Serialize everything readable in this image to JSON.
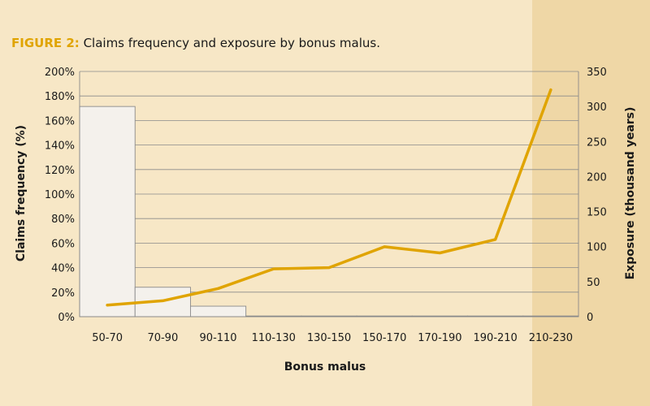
{
  "figure": {
    "label": "FIGURE 2:",
    "caption": "Claims frequency and exposure by bonus malus."
  },
  "colors": {
    "background": "#f7e7c6",
    "background_highlight": "#efd7a6",
    "line": "#e0a400",
    "bar_fill": "#f4f1ec",
    "bar_stroke": "#8a8a8a",
    "grid": "#8a8a8a"
  },
  "chart_data": {
    "type": "bar",
    "title": "Claims frequency and exposure by bonus malus.",
    "xlabel": "Bonus malus",
    "ylabel_left": "Claims frequency (%)",
    "ylabel_right": "Exposure (thousand years)",
    "categories": [
      "50-70",
      "70-90",
      "90-110",
      "110-130",
      "130-150",
      "150-170",
      "170-190",
      "190-210",
      "210-230"
    ],
    "left_axis": {
      "min": 0,
      "max": 200,
      "step": 20,
      "ticks": [
        "0%",
        "20%",
        "40%",
        "60%",
        "80%",
        "100%",
        "120%",
        "140%",
        "160%",
        "180%",
        "200%"
      ]
    },
    "right_axis": {
      "min": 0,
      "max": 350,
      "step": 50,
      "ticks": [
        "0",
        "50",
        "100",
        "150",
        "200",
        "250",
        "300",
        "350"
      ]
    },
    "grid": true,
    "series": [
      {
        "name": "Exposure (thousand years)",
        "kind": "bar",
        "axis": "right",
        "values": [
          300,
          42,
          15,
          1,
          1,
          1,
          1,
          1,
          1
        ]
      },
      {
        "name": "Claims frequency (%)",
        "kind": "line",
        "axis": "left",
        "values": [
          9.5,
          13,
          23,
          39,
          40,
          57,
          52,
          63,
          185
        ]
      }
    ]
  }
}
